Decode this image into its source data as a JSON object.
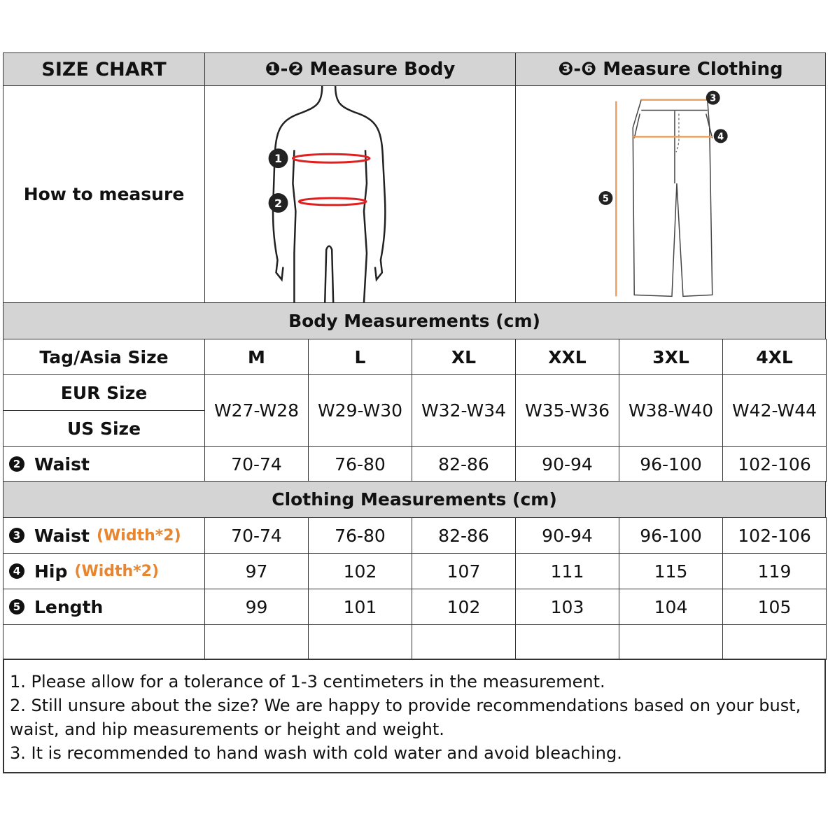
{
  "header": {
    "title": "SIZE CHART",
    "body_marker": "❶-❷",
    "body_title": "Measure Body",
    "clothing_marker": "❸-❻",
    "clothing_title": "Measure Clothing"
  },
  "how_to_measure": "How to measure",
  "figure_markers": {
    "body": [
      "1",
      "2"
    ],
    "clothing": [
      "3",
      "4",
      "5"
    ]
  },
  "body_section": "Body Measurements (cm)",
  "clothing_section": "Clothing Measurements  (cm)",
  "size_label": "Tag/Asia Size",
  "sizes": [
    "M",
    "L",
    "XL",
    "XXL",
    "3XL",
    "4XL"
  ],
  "eur_label": "EUR Size",
  "us_label": "US Size",
  "eur_us": [
    "W27-W28",
    "W29-W30",
    "W32-W34",
    "W35-W36",
    "W38-W40",
    "W42-W44"
  ],
  "body_rows": [
    {
      "num": "2",
      "label": "Waist",
      "values": [
        "70-74",
        "76-80",
        "82-86",
        "90-94",
        "96-100",
        "102-106"
      ]
    }
  ],
  "clothing_rows": [
    {
      "num": "3",
      "label": "Waist",
      "note": "(Width*2)",
      "values": [
        "70-74",
        "76-80",
        "82-86",
        "90-94",
        "96-100",
        "102-106"
      ]
    },
    {
      "num": "4",
      "label": "Hip",
      "note": "(Width*2)",
      "values": [
        "97",
        "102",
        "107",
        "111",
        "115",
        "119"
      ]
    },
    {
      "num": "5",
      "label": "Length",
      "note": "",
      "values": [
        "99",
        "101",
        "102",
        "103",
        "104",
        "105"
      ]
    }
  ],
  "notes": [
    "1. Please allow for a tolerance of 1-3 centimeters in the measurement.",
    "2. Still unsure about the size? We are happy to provide recommendations based on your bust, waist, and hip measurements or height and weight.",
    "3. It is recommended to hand wash with cold water and avoid bleaching."
  ],
  "colors": {
    "header_bg": "#d4d4d4",
    "accent": "#e8852f",
    "body_line": "#e02020"
  }
}
